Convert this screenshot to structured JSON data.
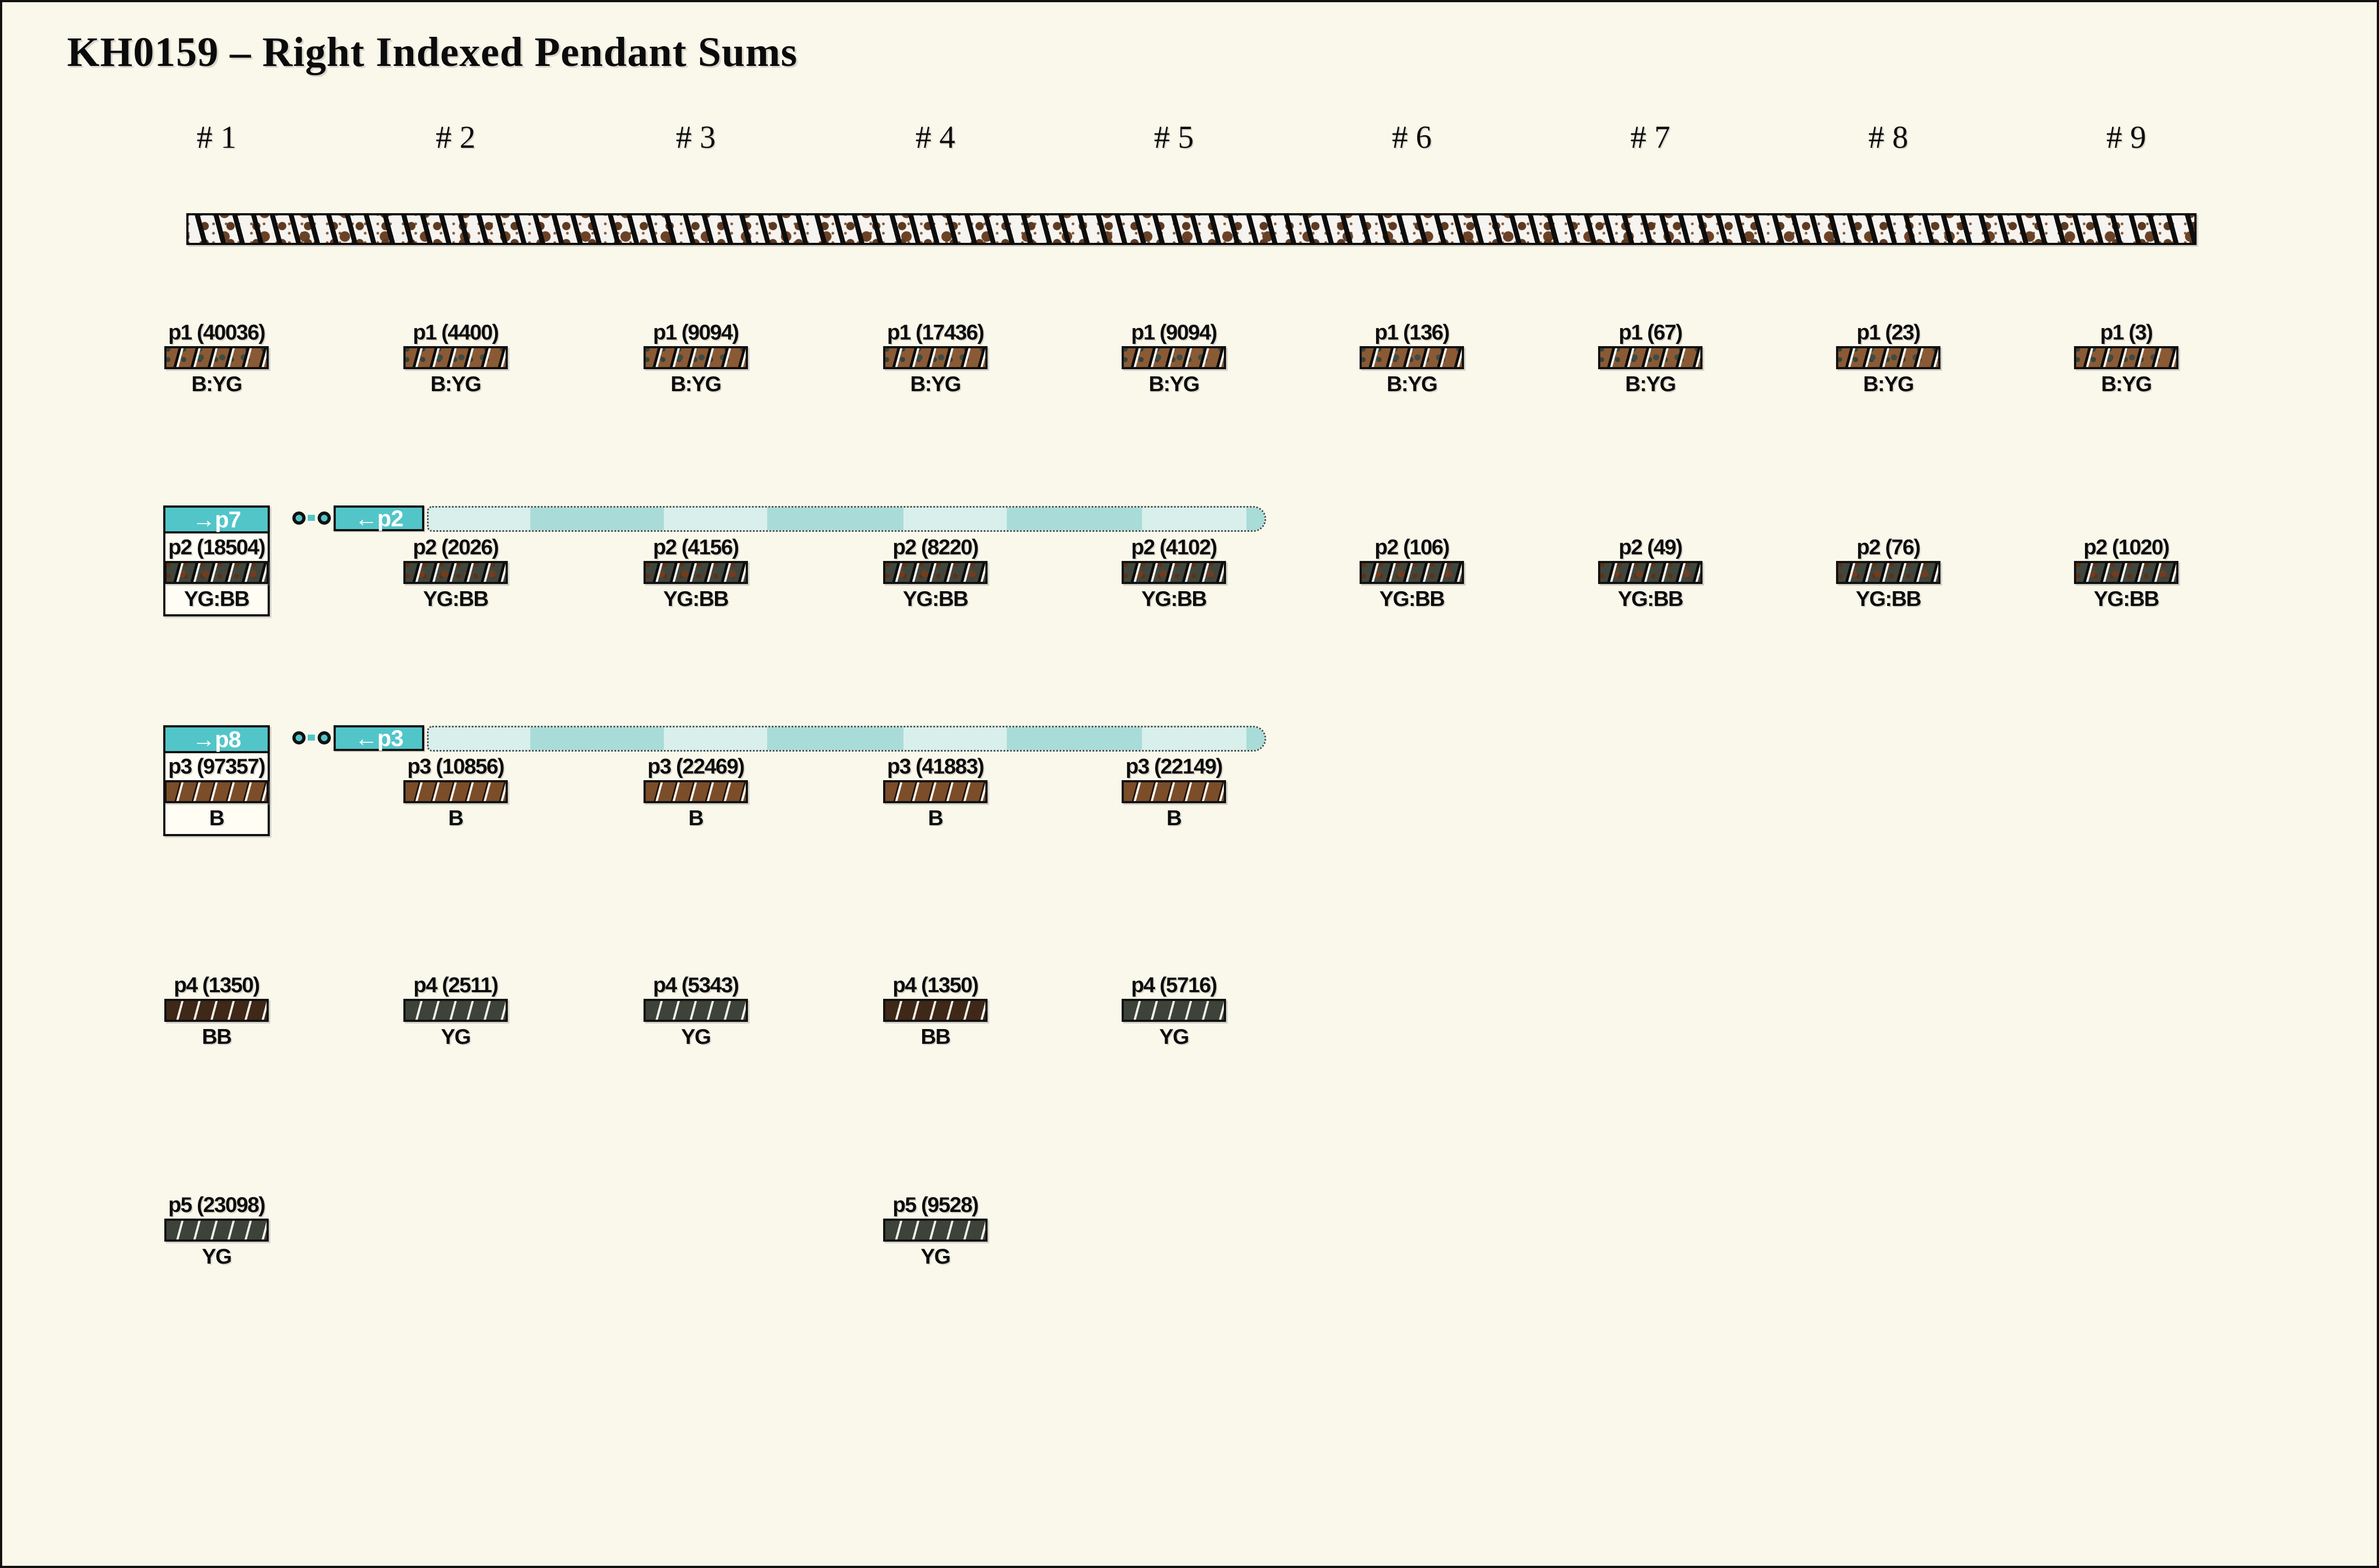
{
  "title": "KH0159 – Right Indexed Pendant Sums",
  "columns": [
    "# 1",
    "# 2",
    "# 3",
    "# 4",
    "# 5",
    "# 6",
    "# 7",
    "# 8",
    "# 9"
  ],
  "colors": {
    "background": "#faf8ea",
    "accent_teal": "#52c5c9",
    "span_band_pale": "#d9efec",
    "span_band_medium": "#a9dcd8",
    "bar_brown_speckled": "#8a5a34",
    "bar_dark_speckled": "#41463c",
    "bar_plain_brown": "#7b4d29",
    "bar_dark_brown": "#3f2817",
    "bar_dark_green": "#3d4339"
  },
  "strand_band": {
    "description": "speckled-strand"
  },
  "rows": [
    {
      "id": "p1",
      "cells": [
        {
          "col": 1,
          "label": "p1 (40036)",
          "tag": "B:YG",
          "tex": "byg"
        },
        {
          "col": 2,
          "label": "p1 (4400)",
          "tag": "B:YG",
          "tex": "byg"
        },
        {
          "col": 3,
          "label": "p1 (9094)",
          "tag": "B:YG",
          "tex": "byg"
        },
        {
          "col": 4,
          "label": "p1 (17436)",
          "tag": "B:YG",
          "tex": "byg"
        },
        {
          "col": 5,
          "label": "p1 (9094)",
          "tag": "B:YG",
          "tex": "byg"
        },
        {
          "col": 6,
          "label": "p1 (136)",
          "tag": "B:YG",
          "tex": "byg"
        },
        {
          "col": 7,
          "label": "p1 (67)",
          "tag": "B:YG",
          "tex": "byg"
        },
        {
          "col": 8,
          "label": "p1 (23)",
          "tag": "B:YG",
          "tex": "byg"
        },
        {
          "col": 9,
          "label": "p1 (3)",
          "tag": "B:YG",
          "tex": "byg"
        }
      ]
    },
    {
      "id": "p2",
      "link": {
        "left": "→p7",
        "right": "←p2"
      },
      "boxed_col": 1,
      "cells": [
        {
          "col": 1,
          "label": "p2 (18504)",
          "tag": "YG:BB",
          "tex": "ygbb"
        },
        {
          "col": 2,
          "label": "p2 (2026)",
          "tag": "YG:BB",
          "tex": "ygbb"
        },
        {
          "col": 3,
          "label": "p2 (4156)",
          "tag": "YG:BB",
          "tex": "ygbb"
        },
        {
          "col": 4,
          "label": "p2 (8220)",
          "tag": "YG:BB",
          "tex": "ygbb"
        },
        {
          "col": 5,
          "label": "p2 (4102)",
          "tag": "YG:BB",
          "tex": "ygbb"
        },
        {
          "col": 6,
          "label": "p2 (106)",
          "tag": "YG:BB",
          "tex": "ygbb"
        },
        {
          "col": 7,
          "label": "p2 (49)",
          "tag": "YG:BB",
          "tex": "ygbb"
        },
        {
          "col": 8,
          "label": "p2 (76)",
          "tag": "YG:BB",
          "tex": "ygbb"
        },
        {
          "col": 9,
          "label": "p2 (1020)",
          "tag": "YG:BB",
          "tex": "ygbb"
        }
      ]
    },
    {
      "id": "p3",
      "link": {
        "left": "→p8",
        "right": "←p3"
      },
      "boxed_col": 1,
      "cells": [
        {
          "col": 1,
          "label": "p3 (97357)",
          "tag": "B",
          "tex": "b"
        },
        {
          "col": 2,
          "label": "p3 (10856)",
          "tag": "B",
          "tex": "b"
        },
        {
          "col": 3,
          "label": "p3 (22469)",
          "tag": "B",
          "tex": "b"
        },
        {
          "col": 4,
          "label": "p3 (41883)",
          "tag": "B",
          "tex": "b"
        },
        {
          "col": 5,
          "label": "p3 (22149)",
          "tag": "B",
          "tex": "b"
        }
      ]
    },
    {
      "id": "p4",
      "cells": [
        {
          "col": 1,
          "label": "p4 (1350)",
          "tag": "BB",
          "tex": "bb"
        },
        {
          "col": 2,
          "label": "p4 (2511)",
          "tag": "YG",
          "tex": "yg"
        },
        {
          "col": 3,
          "label": "p4 (5343)",
          "tag": "YG",
          "tex": "yg"
        },
        {
          "col": 4,
          "label": "p4 (1350)",
          "tag": "BB",
          "tex": "bb"
        },
        {
          "col": 5,
          "label": "p4 (5716)",
          "tag": "YG",
          "tex": "yg"
        }
      ]
    },
    {
      "id": "p5",
      "cells": [
        {
          "col": 1,
          "label": "p5 (23098)",
          "tag": "YG",
          "tex": "yg"
        },
        {
          "col": 4,
          "label": "p5 (9528)",
          "tag": "YG",
          "tex": "yg"
        }
      ]
    }
  ]
}
